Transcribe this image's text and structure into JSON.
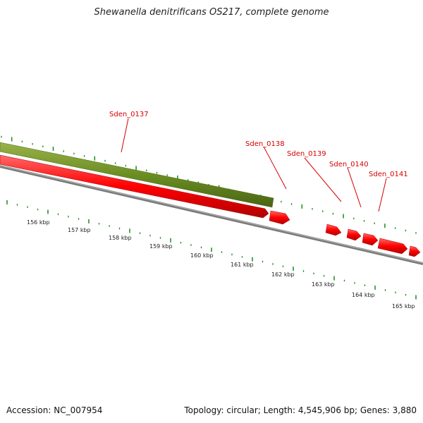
{
  "title": "Shewanella denitrificans OS217, complete genome",
  "footer": {
    "accession": "Accession: NC_007954",
    "summary": "Topology: circular; Length: 4,545,906 bp; Genes: 3,880"
  },
  "colors": {
    "backbone": "#808080",
    "feature_green": "#6b8e23",
    "gene_red": "#ff0000",
    "label_red": "#d40000",
    "tick_green": "#1a8a1a"
  },
  "scale_labels": [
    "156 kbp",
    "157 kbp",
    "158 kbp",
    "159 kbp",
    "160 kbp",
    "161 kbp",
    "162 kbp",
    "163 kbp",
    "164 kbp",
    "165 kbp"
  ],
  "gene_labels": [
    "Sden_0137",
    "Sden_0138",
    "Sden_0139",
    "Sden_0140",
    "Sden_0141"
  ]
}
